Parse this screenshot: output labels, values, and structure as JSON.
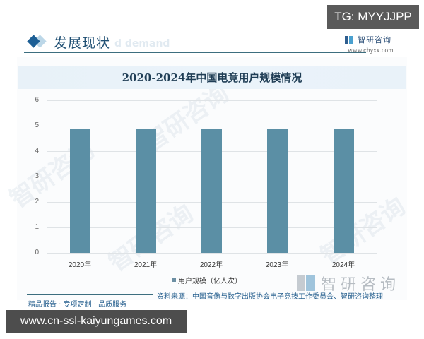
{
  "section": {
    "title": "发展现状",
    "ghost_text": "d demand"
  },
  "brand": {
    "name": "智研咨询",
    "url": "www.chyxx.com",
    "icon": "chyxx-logo-icon"
  },
  "overlay": {
    "tg_badge": "TG: MYYJJPP",
    "url_badge": "www.cn-ssl-kaiyungames.com"
  },
  "chart": {
    "title": "2020-2024年中国电竞用户规模情况",
    "legend_label": "用户规模（亿人次）",
    "y_ticks": [
      "0",
      "1",
      "2",
      "3",
      "4",
      "5",
      "6"
    ],
    "x_ticks": [
      "2020年",
      "2021年",
      "2022年",
      "2023年",
      "2024年"
    ],
    "bar_color": "#5b8fa5"
  },
  "chart_data": {
    "type": "bar",
    "title": "2020-2024年中国电竞用户规模情况",
    "categories": [
      "2020年",
      "2021年",
      "2022年",
      "2023年",
      "2024年"
    ],
    "series": [
      {
        "name": "用户规模（亿人次）",
        "values": [
          4.9,
          4.9,
          4.9,
          4.9,
          4.9
        ]
      }
    ],
    "xlabel": "",
    "ylabel": "",
    "ylim": [
      0,
      6
    ],
    "yticks": [
      0,
      1,
      2,
      3,
      4,
      5,
      6
    ],
    "grid": true,
    "legend_position": "bottom"
  },
  "footer": {
    "watermark_logo_text": "智研咨询",
    "source": "资料来源：中国音像与数字出版协会电子竞技工作委员会、智研咨询整理",
    "slogan": "精品报告 · 专项定制 · 品质服务"
  },
  "watermarks": [
    "智研咨询",
    "智研咨询",
    "智研咨询",
    "智研咨询"
  ]
}
